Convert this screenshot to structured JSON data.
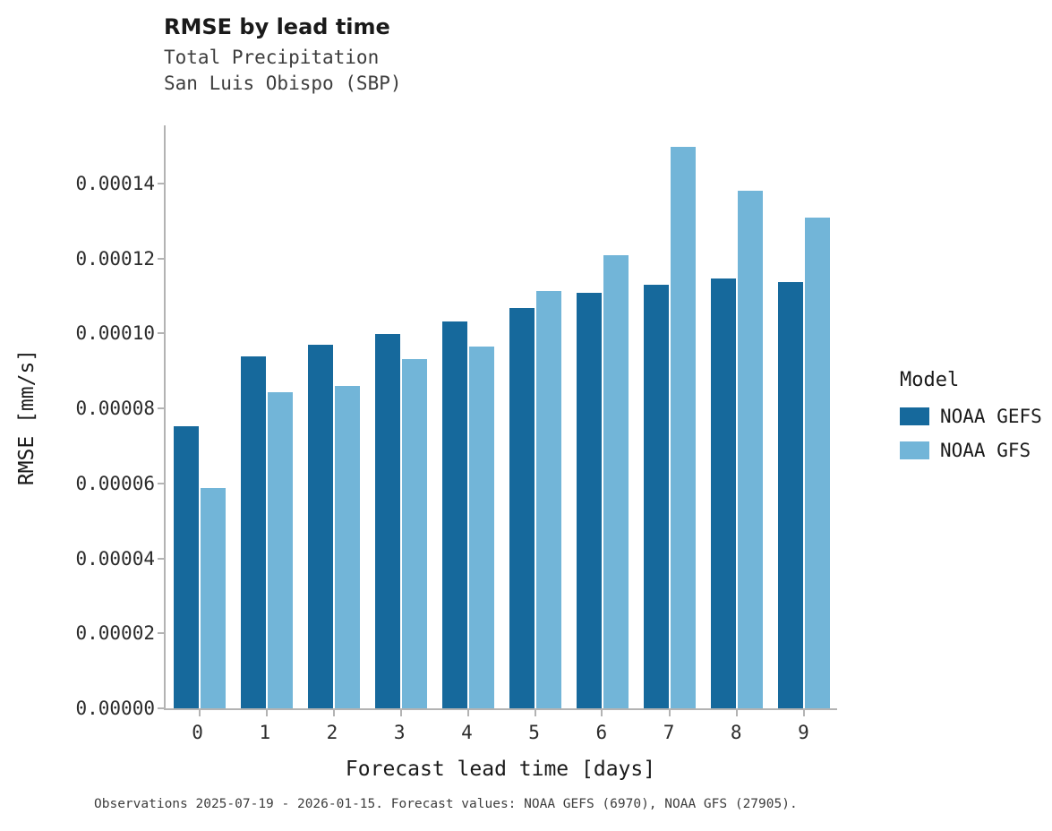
{
  "title": "RMSE by lead time",
  "subtitle_line1": "Total Precipitation",
  "subtitle_line2": "San Luis Obispo (SBP)",
  "x_axis_label": "Forecast lead time [days]",
  "y_axis_label": "RMSE [mm/s]",
  "caption": "Observations 2025-07-19 - 2026-01-15. Forecast values: NOAA GEFS (6970), NOAA GFS (27905).",
  "legend": {
    "title": "Model",
    "items": [
      {
        "label": "NOAA GEFS",
        "color": "#16699c"
      },
      {
        "label": "NOAA GFS",
        "color": "#72b5d8"
      }
    ]
  },
  "chart_data": {
    "type": "bar",
    "title": "RMSE by lead time",
    "subtitle": [
      "Total Precipitation",
      "San Luis Obispo (SBP)"
    ],
    "xlabel": "Forecast lead time [days]",
    "ylabel": "RMSE [mm/s]",
    "categories": [
      "0",
      "1",
      "2",
      "3",
      "4",
      "5",
      "6",
      "7",
      "8",
      "9"
    ],
    "series": [
      {
        "name": "NOAA GEFS",
        "color": "#16699c",
        "values": [
          7.55e-05,
          9.42e-05,
          9.72e-05,
          0.0001002,
          0.0001035,
          0.0001072,
          0.0001112,
          0.0001133,
          0.0001151,
          0.0001141
        ]
      },
      {
        "name": "NOAA GFS",
        "color": "#72b5d8",
        "values": [
          5.9e-05,
          8.45e-05,
          8.62e-05,
          9.35e-05,
          9.68e-05,
          0.0001117,
          0.0001213,
          0.0001503,
          0.0001384,
          0.0001314
        ]
      }
    ],
    "ylim": [
      0,
      0.000156
    ],
    "y_ticks": [
      {
        "label": "0.00000",
        "value": 0.0
      },
      {
        "label": "0.00002",
        "value": 2e-05
      },
      {
        "label": "0.00004",
        "value": 4e-05
      },
      {
        "label": "0.00006",
        "value": 6e-05
      },
      {
        "label": "0.00008",
        "value": 8e-05
      },
      {
        "label": "0.00010",
        "value": 0.0001
      },
      {
        "label": "0.00012",
        "value": 0.00012
      },
      {
        "label": "0.00014",
        "value": 0.00014
      }
    ],
    "grid": false,
    "legend_position": "right",
    "legend_title": "Model"
  }
}
